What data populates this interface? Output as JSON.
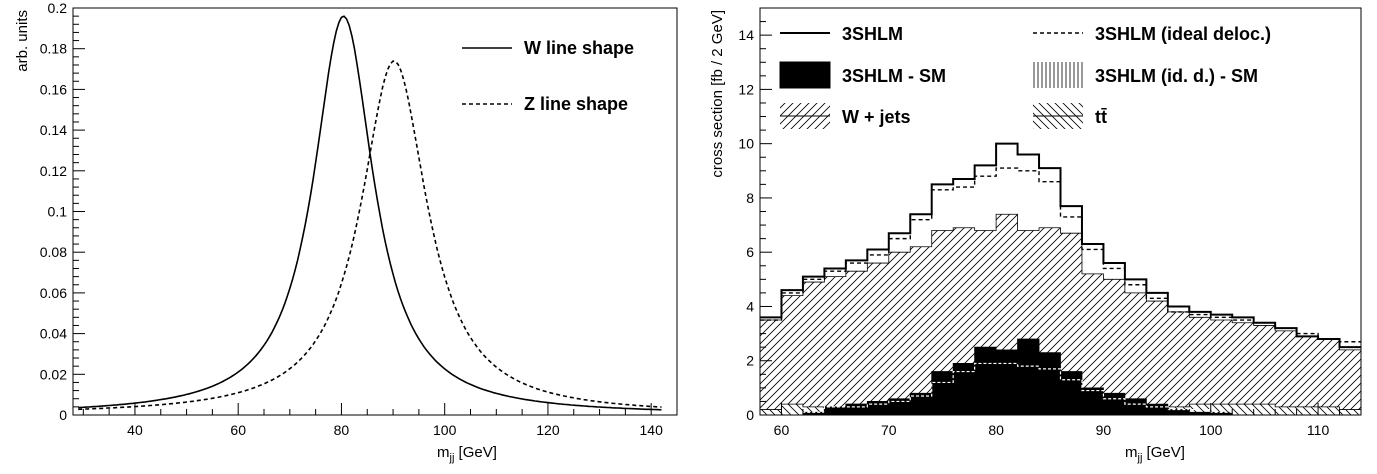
{
  "chart_data": [
    {
      "type": "line",
      "title": "",
      "xlabel": "m",
      "xlabel_sub": "jj",
      "xlabel_unit": " [GeV]",
      "ylabel": "arb. units",
      "xlim": [
        28,
        145
      ],
      "ylim": [
        0,
        0.2
      ],
      "xticks": [
        40,
        60,
        80,
        100,
        120,
        140
      ],
      "yticks": [
        0,
        0.02,
        0.04,
        0.06,
        0.08,
        0.1,
        0.12,
        0.14,
        0.16,
        0.18,
        0.2
      ],
      "ytick_labels": [
        "0",
        "0.02",
        "0.04",
        "0.06",
        "0.08",
        "0.1",
        "0.12",
        "0.14",
        "0.16",
        "0.18",
        "0.2"
      ],
      "legend_position": "top-right",
      "series": [
        {
          "name": "W line shape",
          "style": "solid",
          "peak": 80.4,
          "width": 7.6,
          "amp": 0.196
        },
        {
          "name": "Z line shape",
          "style": "dashed",
          "peak": 90.2,
          "width": 8.4,
          "amp": 0.174
        }
      ]
    },
    {
      "type": "bar",
      "title": "",
      "xlabel": "m",
      "xlabel_sub": "jj",
      "xlabel_unit": " [GeV]",
      "ylabel": "cross section [fb / 2 GeV]",
      "xlim": [
        58,
        114
      ],
      "ylim": [
        0,
        15
      ],
      "xticks": [
        60,
        70,
        80,
        90,
        100,
        110
      ],
      "yticks": [
        0,
        2,
        4,
        6,
        8,
        10,
        12,
        14
      ],
      "bin_edges_start": 58,
      "bin_width": 2,
      "legend_position": "top",
      "legend": [
        {
          "name": "3SHLM",
          "symbol": "solid-line"
        },
        {
          "name": "3SHLM (ideal deloc.)",
          "symbol": "dashed-line"
        },
        {
          "name": "3SHLM - SM",
          "symbol": "filled-box"
        },
        {
          "name": "3SHLM (id. d.) - SM",
          "symbol": "vertical-hatch-box"
        },
        {
          "name": "W + jets",
          "symbol": "diagonal-hatch-box"
        },
        {
          "name": "tt̄",
          "symbol": "back-diagonal-hatch-box"
        }
      ],
      "series": [
        {
          "name": "3SHLM",
          "values": [
            3.6,
            4.6,
            5.1,
            5.4,
            5.7,
            6.1,
            6.7,
            7.4,
            8.5,
            8.7,
            9.2,
            10.0,
            9.6,
            9.1,
            7.7,
            6.3,
            5.6,
            5.0,
            4.5,
            4.0,
            3.8,
            3.7,
            3.6,
            3.4,
            3.2,
            2.9,
            2.8,
            2.5
          ]
        },
        {
          "name": "3SHLM (ideal deloc.)",
          "values": [
            3.5,
            4.5,
            5.0,
            5.3,
            5.6,
            5.9,
            6.5,
            7.2,
            8.3,
            8.4,
            8.8,
            9.1,
            9.0,
            8.6,
            7.3,
            6.1,
            5.4,
            4.8,
            4.3,
            3.8,
            3.7,
            3.6,
            3.5,
            3.4,
            3.2,
            3.0,
            2.8,
            2.7
          ]
        },
        {
          "name": "3SHLM - SM",
          "values": [
            0.0,
            0.0,
            0.1,
            0.3,
            0.4,
            0.5,
            0.6,
            0.8,
            1.6,
            1.9,
            2.5,
            2.4,
            2.8,
            2.3,
            1.6,
            1.0,
            0.8,
            0.6,
            0.4,
            0.2,
            0.1,
            0.1,
            0.0,
            0.0,
            0.0,
            0.0,
            0.0,
            0.0
          ]
        },
        {
          "name": "3SHLM (id. d.) - SM",
          "values": [
            0.0,
            0.0,
            0.1,
            0.3,
            0.3,
            0.4,
            0.5,
            0.7,
            1.2,
            1.6,
            1.9,
            1.9,
            1.8,
            1.7,
            1.3,
            0.9,
            0.6,
            0.4,
            0.3,
            0.2,
            0.2,
            0.1,
            0.0,
            0.0,
            0.0,
            0.0,
            0.0,
            0.0
          ]
        },
        {
          "name": "W + jets",
          "values": [
            3.5,
            4.4,
            4.9,
            5.1,
            5.3,
            5.6,
            6.0,
            6.2,
            6.8,
            6.9,
            6.8,
            7.4,
            6.8,
            6.9,
            6.7,
            5.2,
            5.0,
            4.5,
            4.2,
            3.8,
            3.6,
            3.5,
            3.4,
            3.3,
            3.1,
            2.9,
            2.8,
            2.4
          ]
        },
        {
          "name": "tt̄",
          "values": [
            0.2,
            0.4,
            0.3,
            0.3,
            0.4,
            0.4,
            0.5,
            0.4,
            0.3,
            0.3,
            0.3,
            0.3,
            0.3,
            0.3,
            0.3,
            0.3,
            0.3,
            0.3,
            0.3,
            0.3,
            0.4,
            0.4,
            0.4,
            0.4,
            0.3,
            0.3,
            0.3,
            0.2
          ]
        }
      ]
    }
  ]
}
